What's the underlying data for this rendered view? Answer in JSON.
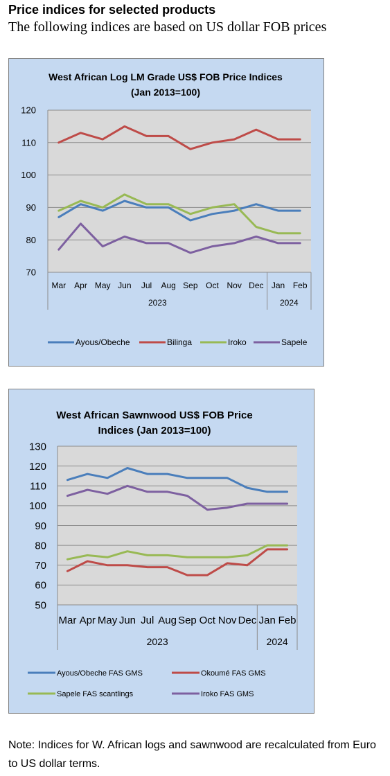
{
  "header": {
    "title": "Price indices for selected products",
    "subtitle": "The following indices are based on US dollar FOB prices"
  },
  "note": "Note: Indices for W. African logs and sawnwood are recalculated from Euro to US dollar terms.",
  "chart_data": [
    {
      "type": "line",
      "title": "West African Log LM Grade US$ FOB Price Indices",
      "subtitle": "(Jan 2013=100)",
      "categories": [
        "Mar",
        "Apr",
        "May",
        "Jun",
        "Jul",
        "Aug",
        "Sep",
        "Oct",
        "Nov",
        "Dec",
        "Jan",
        "Feb"
      ],
      "year_groups": [
        {
          "label": "2023",
          "count": 10
        },
        {
          "label": "2024",
          "count": 2
        }
      ],
      "ylim": [
        70,
        120
      ],
      "yticks": [
        70,
        80,
        90,
        100,
        110,
        120
      ],
      "grid": true,
      "legend": "bottom",
      "series": [
        {
          "name": "Ayous/Obeche",
          "color": "#4a7ebb",
          "values": [
            87,
            91,
            89,
            92,
            90,
            90,
            86,
            88,
            89,
            91,
            89,
            89
          ]
        },
        {
          "name": "Bilinga",
          "color": "#be4b48",
          "values": [
            110,
            113,
            111,
            115,
            112,
            112,
            108,
            110,
            111,
            114,
            111,
            111
          ]
        },
        {
          "name": "Iroko",
          "color": "#98b954",
          "values": [
            89,
            92,
            90,
            94,
            91,
            91,
            88,
            90,
            91,
            84,
            82,
            82
          ]
        },
        {
          "name": "Sapele",
          "color": "#7d60a0",
          "values": [
            77,
            85,
            78,
            81,
            79,
            79,
            76,
            78,
            79,
            81,
            79,
            79
          ]
        }
      ]
    },
    {
      "type": "line",
      "title": "West African Sawnwood US$ FOB Price",
      "subtitle": "Indices (Jan 2013=100)",
      "categories": [
        "Mar",
        "Apr",
        "May",
        "Jun",
        "Jul",
        "Aug",
        "Sep",
        "Oct",
        "Nov",
        "Dec",
        "Jan",
        "Feb"
      ],
      "year_groups": [
        {
          "label": "2023",
          "count": 10
        },
        {
          "label": "2024",
          "count": 2
        }
      ],
      "ylim": [
        50,
        130
      ],
      "yticks": [
        50,
        60,
        70,
        80,
        90,
        100,
        110,
        120,
        130
      ],
      "grid": true,
      "legend": "bottom",
      "series": [
        {
          "name": "Ayous/Obeche  FAS GMS",
          "color": "#4a7ebb",
          "values": [
            113,
            116,
            114,
            119,
            116,
            116,
            114,
            114,
            114,
            109,
            107,
            107
          ]
        },
        {
          "name": "Okoumé  FAS GMS",
          "color": "#be4b48",
          "values": [
            67,
            72,
            70,
            70,
            69,
            69,
            65,
            65,
            71,
            70,
            78,
            78
          ]
        },
        {
          "name": "Sapele FAS scantlings",
          "color": "#98b954",
          "values": [
            73,
            75,
            74,
            77,
            75,
            75,
            74,
            74,
            74,
            75,
            80,
            80
          ]
        },
        {
          "name": "Iroko FAS GMS",
          "color": "#7d60a0",
          "values": [
            105,
            108,
            106,
            110,
            107,
            107,
            105,
            98,
            99,
            101,
            101,
            101
          ]
        }
      ]
    }
  ]
}
